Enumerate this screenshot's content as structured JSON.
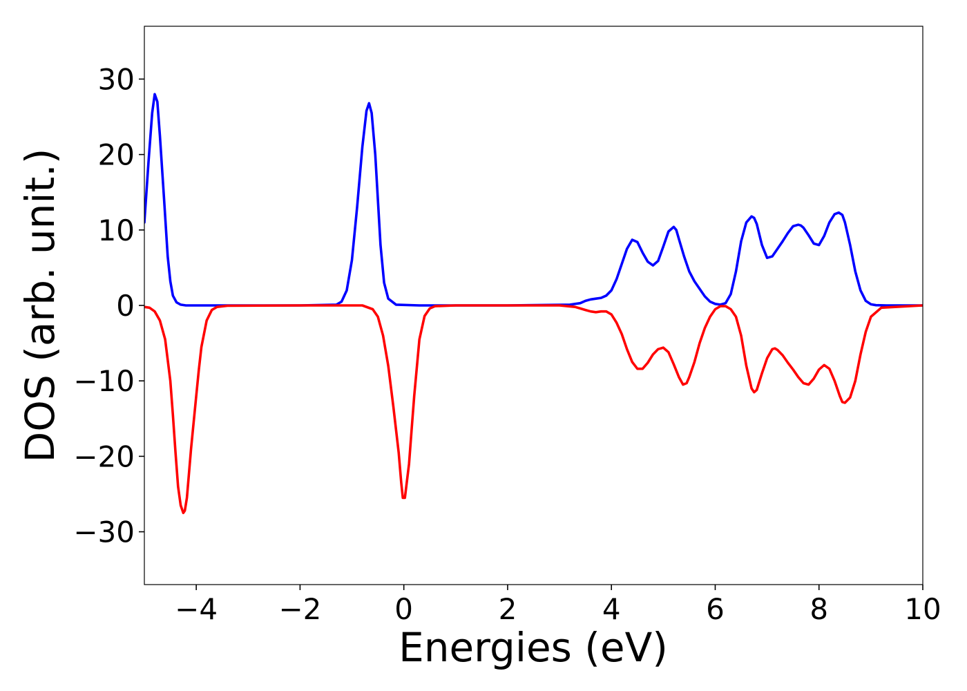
{
  "chart_data": {
    "type": "line",
    "title": "",
    "xlabel": "Energies (eV)",
    "ylabel": "DOS (arb. unit.)",
    "xlim": [
      -5,
      10
    ],
    "ylim": [
      -37,
      37
    ],
    "grid": false,
    "x_ticks": [
      -4,
      -2,
      0,
      2,
      4,
      6,
      8,
      10
    ],
    "x_tick_labels": [
      "−4",
      "−2",
      "0",
      "2",
      "4",
      "6",
      "8",
      "10"
    ],
    "y_ticks": [
      30,
      20,
      10,
      0,
      -10,
      -20,
      -30
    ],
    "y_tick_labels": [
      "30",
      "20",
      "10",
      "0",
      "−10",
      "−20",
      "−30"
    ],
    "series": [
      {
        "color": "#0000ff",
        "x": [
          -5.0,
          -4.92,
          -4.85,
          -4.8,
          -4.75,
          -4.7,
          -4.62,
          -4.55,
          -4.5,
          -4.45,
          -4.38,
          -4.3,
          -4.2,
          -3.9,
          -2.0,
          -1.3,
          -1.2,
          -1.1,
          -1.0,
          -0.9,
          -0.8,
          -0.72,
          -0.67,
          -0.62,
          -0.55,
          -0.5,
          -0.45,
          -0.38,
          -0.3,
          -0.15,
          0.3,
          2.0,
          3.2,
          3.4,
          3.5,
          3.6,
          3.7,
          3.8,
          3.9,
          4.0,
          4.1,
          4.2,
          4.3,
          4.4,
          4.5,
          4.6,
          4.7,
          4.8,
          4.9,
          5.0,
          5.1,
          5.2,
          5.25,
          5.3,
          5.4,
          5.5,
          5.6,
          5.8,
          5.9,
          6.0,
          6.1,
          6.2,
          6.3,
          6.4,
          6.5,
          6.6,
          6.7,
          6.75,
          6.8,
          6.9,
          7.0,
          7.1,
          7.2,
          7.3,
          7.4,
          7.5,
          7.6,
          7.65,
          7.7,
          7.8,
          7.9,
          8.0,
          8.1,
          8.2,
          8.3,
          8.38,
          8.45,
          8.5,
          8.6,
          8.7,
          8.8,
          8.9,
          9.0,
          9.1,
          9.3,
          10.0
        ],
        "y": [
          11.0,
          19.0,
          25.5,
          28.0,
          27.0,
          22.5,
          14.0,
          6.5,
          3.2,
          1.3,
          0.4,
          0.1,
          0.0,
          0.0,
          0.0,
          0.1,
          0.5,
          2.0,
          6.0,
          13.0,
          21.0,
          25.8,
          26.8,
          25.5,
          20.0,
          14.0,
          8.0,
          3.0,
          0.9,
          0.1,
          0.0,
          0.0,
          0.1,
          0.3,
          0.6,
          0.8,
          0.9,
          1.0,
          1.3,
          2.0,
          3.5,
          5.5,
          7.5,
          8.7,
          8.4,
          7.0,
          5.8,
          5.3,
          5.9,
          7.8,
          9.8,
          10.4,
          10.0,
          8.8,
          6.5,
          4.5,
          3.2,
          1.2,
          0.5,
          0.2,
          0.1,
          0.3,
          1.5,
          4.5,
          8.5,
          11.0,
          11.8,
          11.6,
          10.8,
          8.0,
          6.3,
          6.5,
          7.5,
          8.5,
          9.6,
          10.5,
          10.7,
          10.6,
          10.3,
          9.3,
          8.2,
          8.0,
          9.2,
          11.0,
          12.1,
          12.3,
          12.0,
          11.0,
          8.0,
          4.5,
          2.0,
          0.6,
          0.15,
          0.03,
          0.0,
          0.0
        ]
      },
      {
        "color": "#ff0000",
        "x": [
          -5.0,
          -4.9,
          -4.8,
          -4.7,
          -4.6,
          -4.5,
          -4.45,
          -4.4,
          -4.35,
          -4.3,
          -4.25,
          -4.22,
          -4.18,
          -4.1,
          -4.0,
          -3.95,
          -3.9,
          -3.8,
          -3.7,
          -3.6,
          -3.4,
          -2.0,
          -0.8,
          -0.6,
          -0.5,
          -0.4,
          -0.3,
          -0.2,
          -0.1,
          -0.05,
          -0.02,
          0.02,
          0.1,
          0.15,
          0.2,
          0.3,
          0.4,
          0.5,
          0.6,
          1.0,
          3.0,
          3.3,
          3.4,
          3.5,
          3.6,
          3.7,
          3.8,
          3.9,
          4.0,
          4.1,
          4.2,
          4.3,
          4.4,
          4.5,
          4.6,
          4.7,
          4.8,
          4.9,
          5.0,
          5.1,
          5.2,
          5.3,
          5.38,
          5.45,
          5.5,
          5.6,
          5.7,
          5.8,
          5.9,
          6.0,
          6.1,
          6.2,
          6.3,
          6.4,
          6.5,
          6.6,
          6.7,
          6.75,
          6.8,
          6.9,
          7.0,
          7.1,
          7.15,
          7.2,
          7.3,
          7.4,
          7.5,
          7.6,
          7.7,
          7.8,
          7.9,
          8.0,
          8.1,
          8.2,
          8.3,
          8.4,
          8.45,
          8.5,
          8.6,
          8.7,
          8.8,
          8.9,
          9.0,
          9.2,
          10.0
        ],
        "y": [
          -0.2,
          -0.3,
          -0.8,
          -2.0,
          -4.5,
          -10.0,
          -14.5,
          -19.5,
          -24.0,
          -26.5,
          -27.5,
          -27.2,
          -25.5,
          -19.0,
          -12.0,
          -8.5,
          -5.5,
          -2.0,
          -0.6,
          -0.2,
          -0.05,
          0.0,
          0.0,
          -0.5,
          -1.5,
          -4.0,
          -8.0,
          -13.5,
          -19.5,
          -23.5,
          -25.5,
          -25.5,
          -21.0,
          -16.5,
          -12.0,
          -4.5,
          -1.4,
          -0.4,
          -0.1,
          0.0,
          0.0,
          -0.2,
          -0.4,
          -0.6,
          -0.8,
          -0.9,
          -0.8,
          -0.8,
          -1.2,
          -2.3,
          -3.8,
          -5.8,
          -7.5,
          -8.4,
          -8.4,
          -7.6,
          -6.5,
          -5.8,
          -5.6,
          -6.2,
          -7.8,
          -9.5,
          -10.5,
          -10.3,
          -9.5,
          -7.5,
          -5.0,
          -3.0,
          -1.5,
          -0.5,
          -0.1,
          -0.1,
          -0.5,
          -1.5,
          -4.0,
          -8.0,
          -11.0,
          -11.5,
          -11.2,
          -9.0,
          -7.0,
          -5.8,
          -5.7,
          -5.9,
          -6.6,
          -7.6,
          -8.5,
          -9.5,
          -10.3,
          -10.5,
          -9.7,
          -8.5,
          -7.9,
          -8.4,
          -10.0,
          -12.0,
          -12.8,
          -12.9,
          -12.2,
          -10.0,
          -6.5,
          -3.5,
          -1.5,
          -0.3,
          0.0
        ]
      }
    ]
  }
}
